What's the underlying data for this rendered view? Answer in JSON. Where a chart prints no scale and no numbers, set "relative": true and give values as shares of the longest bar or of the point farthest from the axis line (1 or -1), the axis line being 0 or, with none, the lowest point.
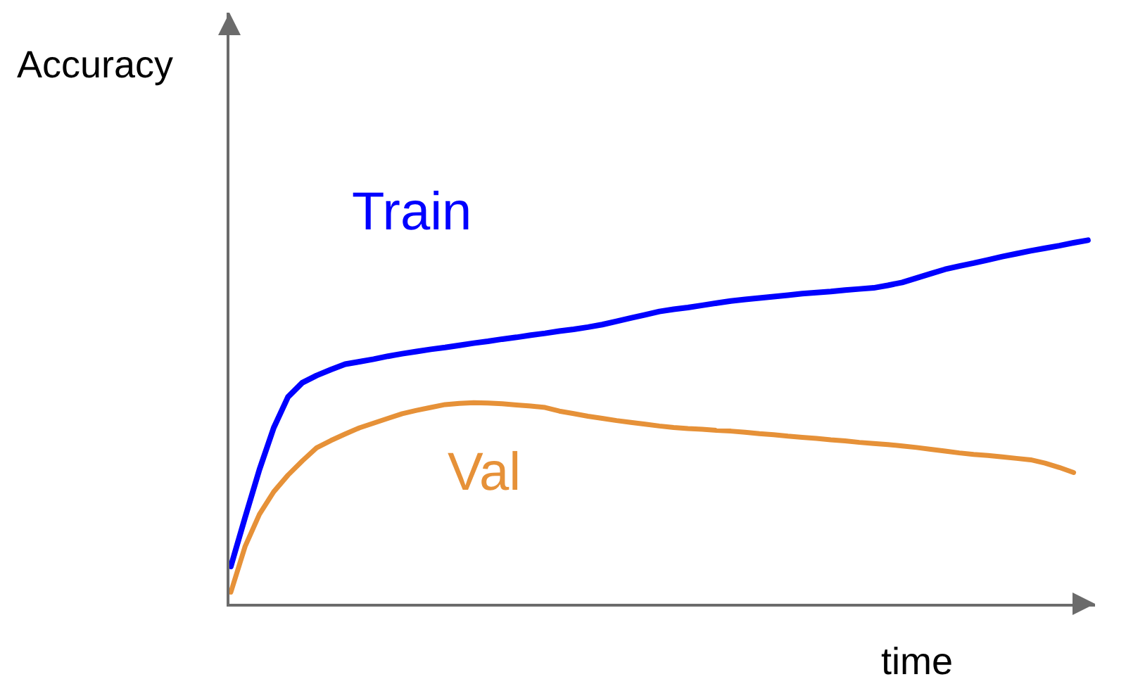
{
  "chart_data": {
    "type": "line",
    "relative": true,
    "xlabel": "time",
    "ylabel": "Accuracy",
    "categories": [
      null,
      null,
      null,
      null,
      null,
      null,
      null,
      null,
      null,
      null,
      null,
      null,
      null,
      null,
      null,
      null,
      null,
      null,
      null,
      null,
      null,
      null,
      null,
      null,
      null,
      null,
      null,
      null,
      null,
      null,
      null,
      null,
      null,
      null,
      null,
      null,
      null,
      null,
      null,
      null,
      null,
      null,
      null,
      null,
      null,
      null,
      null,
      null,
      null,
      null,
      null,
      null,
      null,
      null,
      null,
      null,
      null,
      null,
      null,
      null,
      null
    ],
    "series": [
      {
        "name": "Train",
        "color": "#0000ff",
        "values": [
          0.103,
          0.238,
          0.369,
          0.484,
          0.569,
          0.608,
          0.628,
          0.644,
          0.659,
          0.666,
          0.673,
          0.681,
          0.688,
          0.694,
          0.7,
          0.705,
          0.711,
          0.717,
          0.722,
          0.728,
          0.733,
          0.739,
          0.744,
          0.75,
          0.755,
          0.761,
          0.768,
          0.777,
          0.786,
          0.795,
          0.804,
          0.81,
          0.815,
          0.821,
          0.827,
          0.833,
          0.837,
          0.841,
          0.845,
          0.849,
          0.853,
          0.856,
          0.859,
          0.863,
          0.866,
          0.869,
          0.876,
          0.884,
          0.896,
          0.908,
          0.92,
          0.929,
          0.937,
          0.946,
          0.955,
          0.963,
          0.971,
          0.978,
          0.985,
          0.993,
          1
        ]
      },
      {
        "name": "Val",
        "color": "#e69138",
        "values": [
          0.032,
          0.158,
          0.246,
          0.308,
          0.354,
          0.393,
          0.429,
          0.449,
          0.467,
          0.484,
          0.497,
          0.51,
          0.523,
          0.532,
          0.54,
          0.548,
          0.551,
          0.553,
          0.552,
          0.55,
          0.547,
          0.544,
          0.54,
          0.53,
          0.523,
          0.516,
          0.51,
          0.504,
          0.499,
          0.494,
          0.489,
          0.485,
          0.482,
          0.48,
          0.477,
          0.475,
          0.472,
          0.468,
          0.465,
          0.461,
          0.458,
          0.455,
          0.451,
          0.448,
          0.444,
          0.441,
          0.438,
          0.434,
          0.43,
          0.425,
          0.42,
          0.415,
          0.411,
          0.408,
          0.404,
          0.4,
          0.396,
          0.387,
          0.375,
          0.361,
          null
        ]
      }
    ]
  }
}
